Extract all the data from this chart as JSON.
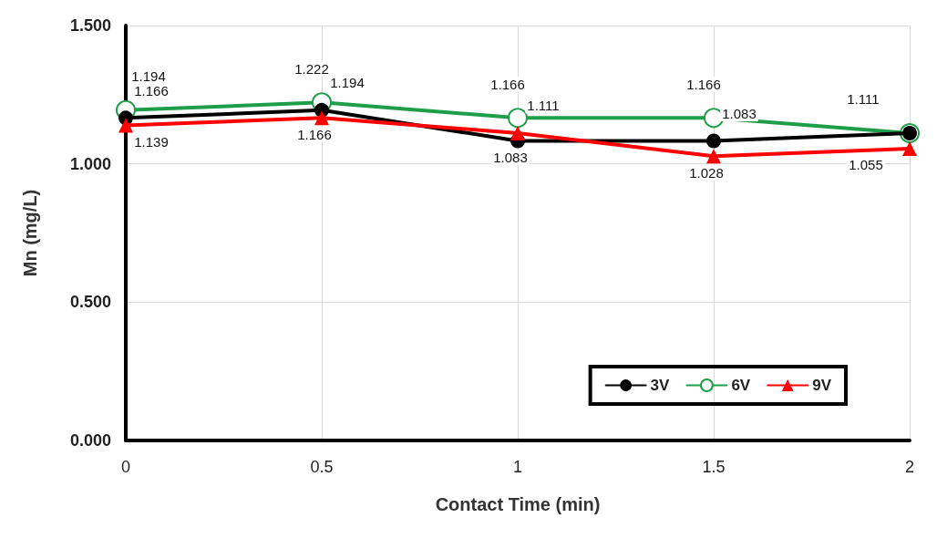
{
  "chart_data": {
    "type": "line",
    "xlabel": "Contact Time (min)",
    "ylabel": "Mn (mg/L)",
    "x": [
      0,
      0.5,
      1,
      1.5,
      2
    ],
    "xlim": [
      0,
      2
    ],
    "xticks": [
      0,
      0.5,
      1,
      1.5,
      2
    ],
    "ylim": [
      0,
      1.5
    ],
    "yticks": [
      {
        "value": 0,
        "label": "0.000"
      },
      {
        "value": 0.5,
        "label": "0.500"
      },
      {
        "value": 1,
        "label": "1.000"
      },
      {
        "value": 1.5,
        "label": "1.500"
      }
    ],
    "grid": true,
    "legend": "bottom right",
    "line_style": "solid",
    "series": [
      {
        "name": "3V",
        "color": "#000000",
        "marker": "circle",
        "values": [
          1.166,
          1.194,
          1.083,
          1.083,
          1.111
        ],
        "value_labels": [
          "1.166",
          "1.194",
          "1.083",
          "1.083",
          null
        ]
      },
      {
        "name": "6V",
        "color": "#1f9e4a",
        "marker": "hollow circle",
        "values": [
          1.194,
          1.222,
          1.166,
          1.166,
          1.111
        ],
        "value_labels": [
          "1.194",
          "1.222",
          "1.166",
          "1.166",
          "1.111"
        ]
      },
      {
        "name": "9V",
        "color": "#ff0000",
        "marker": "triangle",
        "values": [
          1.139,
          1.166,
          1.111,
          1.028,
          1.055
        ],
        "value_labels": [
          "1.139",
          "1.166",
          "1.111",
          "1.028",
          "1.055"
        ]
      }
    ]
  }
}
